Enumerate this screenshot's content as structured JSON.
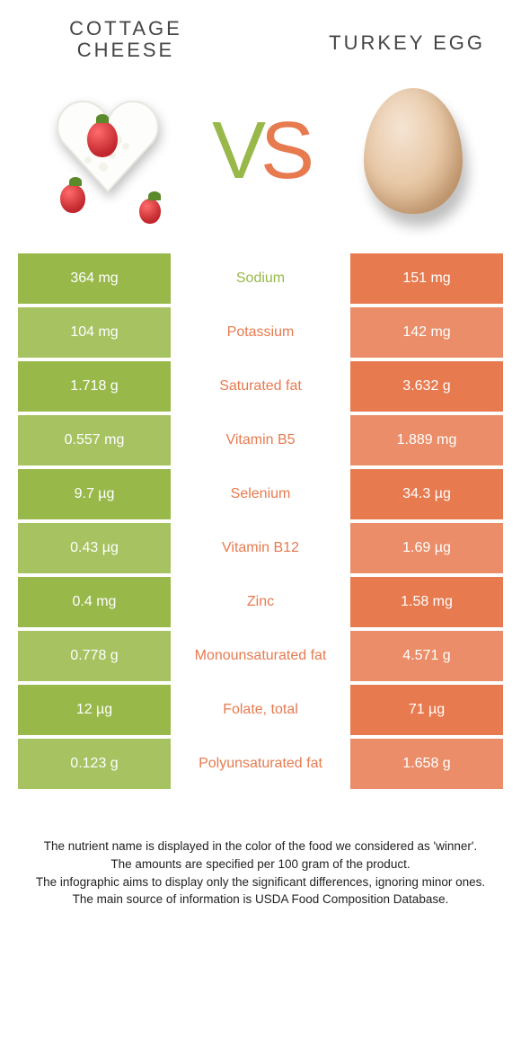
{
  "colors": {
    "left": "#98b84a",
    "right": "#e77a4f",
    "left_dim": "#a7c261",
    "right_dim": "#eb8d68"
  },
  "left_food": {
    "title_line1": "COTTAGE",
    "title_line2": "CHEESE"
  },
  "right_food": {
    "title": "TURKEY EGG"
  },
  "vs": {
    "v": "V",
    "s": "S"
  },
  "rows": [
    {
      "nutrient": "Sodium",
      "left": "364 mg",
      "right": "151 mg",
      "winner": "left"
    },
    {
      "nutrient": "Potassium",
      "left": "104 mg",
      "right": "142 mg",
      "winner": "right"
    },
    {
      "nutrient": "Saturated fat",
      "left": "1.718 g",
      "right": "3.632 g",
      "winner": "right"
    },
    {
      "nutrient": "Vitamin B5",
      "left": "0.557 mg",
      "right": "1.889 mg",
      "winner": "right"
    },
    {
      "nutrient": "Selenium",
      "left": "9.7 µg",
      "right": "34.3 µg",
      "winner": "right"
    },
    {
      "nutrient": "Vitamin B12",
      "left": "0.43 µg",
      "right": "1.69 µg",
      "winner": "right"
    },
    {
      "nutrient": "Zinc",
      "left": "0.4 mg",
      "right": "1.58 mg",
      "winner": "right"
    },
    {
      "nutrient": "Monounsaturated fat",
      "left": "0.778 g",
      "right": "4.571 g",
      "winner": "right"
    },
    {
      "nutrient": "Folate, total",
      "left": "12 µg",
      "right": "71 µg",
      "winner": "right"
    },
    {
      "nutrient": "Polyunsaturated fat",
      "left": "0.123 g",
      "right": "1.658 g",
      "winner": "right"
    }
  ],
  "footer": {
    "l1": "The nutrient name is displayed in the color of the food we considered as 'winner'.",
    "l2": "The amounts are specified per 100 gram of the product.",
    "l3": "The infographic aims to display only the significant differences, ignoring minor ones.",
    "l4": "The main source of information is USDA Food Composition Database."
  }
}
